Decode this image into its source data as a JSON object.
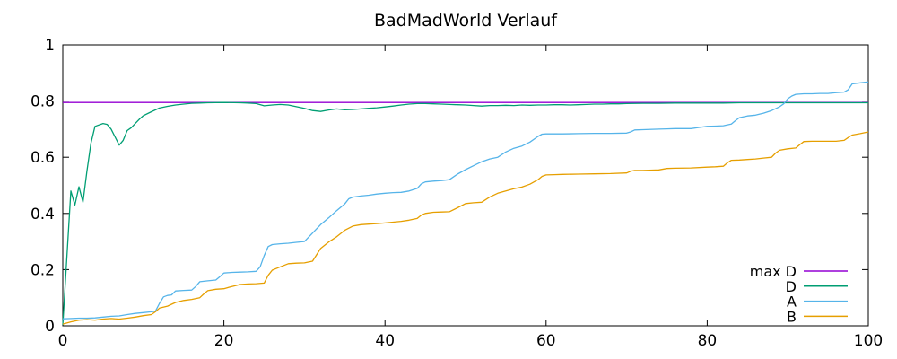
{
  "chart_data": {
    "type": "line",
    "title": "BadMadWorld Verlauf",
    "xlabel": "",
    "ylabel": "",
    "xlim": [
      0,
      100
    ],
    "ylim": [
      0,
      1
    ],
    "grid": false,
    "background_color": "#ffffff",
    "axis_color": "#000000",
    "legend_position": "inside-bottom-right",
    "x_ticks": [
      {
        "v": 0,
        "label": "0"
      },
      {
        "v": 20,
        "label": "20"
      },
      {
        "v": 40,
        "label": "40"
      },
      {
        "v": 60,
        "label": "60"
      },
      {
        "v": 80,
        "label": "80"
      },
      {
        "v": 100,
        "label": "100"
      }
    ],
    "y_ticks": [
      {
        "v": 0,
        "label": "0"
      },
      {
        "v": 0.2,
        "label": "0.2"
      },
      {
        "v": 0.4,
        "label": "0.4"
      },
      {
        "v": 0.6,
        "label": "0.6"
      },
      {
        "v": 0.8,
        "label": "0.8"
      },
      {
        "v": 1,
        "label": "1"
      }
    ],
    "series": [
      {
        "name": "max D",
        "color": "#9400d3",
        "points": [
          [
            0,
            0.795
          ],
          [
            100,
            0.795
          ]
        ]
      },
      {
        "name": "D",
        "color": "#009e73",
        "points": [
          [
            0,
            0.003
          ],
          [
            1,
            0.48
          ],
          [
            1.5,
            0.43
          ],
          [
            2,
            0.495
          ],
          [
            2.5,
            0.44
          ],
          [
            3,
            0.55
          ],
          [
            3.5,
            0.65
          ],
          [
            4,
            0.71
          ],
          [
            5,
            0.72
          ],
          [
            5.5,
            0.717
          ],
          [
            6,
            0.7
          ],
          [
            7,
            0.643
          ],
          [
            7.5,
            0.66
          ],
          [
            8,
            0.695
          ],
          [
            8.5,
            0.705
          ],
          [
            9,
            0.72
          ],
          [
            9.5,
            0.735
          ],
          [
            10,
            0.748
          ],
          [
            11,
            0.762
          ],
          [
            12,
            0.775
          ],
          [
            13,
            0.781
          ],
          [
            14,
            0.786
          ],
          [
            15,
            0.789
          ],
          [
            16,
            0.792
          ],
          [
            17,
            0.793
          ],
          [
            18,
            0.794
          ],
          [
            20,
            0.795
          ],
          [
            22,
            0.794
          ],
          [
            23,
            0.793
          ],
          [
            24,
            0.791
          ],
          [
            25,
            0.783
          ],
          [
            26,
            0.786
          ],
          [
            27,
            0.788
          ],
          [
            28,
            0.786
          ],
          [
            29,
            0.78
          ],
          [
            30,
            0.774
          ],
          [
            31,
            0.766
          ],
          [
            32,
            0.763
          ],
          [
            33,
            0.768
          ],
          [
            34,
            0.772
          ],
          [
            35,
            0.769
          ],
          [
            36,
            0.77
          ],
          [
            37,
            0.772
          ],
          [
            38,
            0.774
          ],
          [
            39,
            0.776
          ],
          [
            40,
            0.779
          ],
          [
            41,
            0.782
          ],
          [
            42,
            0.786
          ],
          [
            43,
            0.789
          ],
          [
            44,
            0.791
          ],
          [
            45,
            0.791
          ],
          [
            46,
            0.79
          ],
          [
            47,
            0.789
          ],
          [
            48,
            0.788
          ],
          [
            49,
            0.787
          ],
          [
            50,
            0.786
          ],
          [
            51,
            0.784
          ],
          [
            52,
            0.782
          ],
          [
            53,
            0.784
          ],
          [
            54,
            0.784
          ],
          [
            55,
            0.785
          ],
          [
            56,
            0.784
          ],
          [
            57,
            0.786
          ],
          [
            58,
            0.785
          ],
          [
            59,
            0.786
          ],
          [
            60,
            0.786
          ],
          [
            61,
            0.787
          ],
          [
            62,
            0.787
          ],
          [
            63,
            0.786
          ],
          [
            64,
            0.787
          ],
          [
            65,
            0.788
          ],
          [
            66,
            0.789
          ],
          [
            67,
            0.789
          ],
          [
            68,
            0.79
          ],
          [
            69,
            0.79
          ],
          [
            70,
            0.791
          ],
          [
            72,
            0.792
          ],
          [
            74,
            0.792
          ],
          [
            76,
            0.793
          ],
          [
            78,
            0.793
          ],
          [
            80,
            0.793
          ],
          [
            82,
            0.793
          ],
          [
            84,
            0.794
          ],
          [
            86,
            0.794
          ],
          [
            88,
            0.794
          ],
          [
            90,
            0.794
          ],
          [
            92,
            0.794
          ],
          [
            94,
            0.794
          ],
          [
            96,
            0.794
          ],
          [
            98,
            0.794
          ],
          [
            100,
            0.794
          ]
        ]
      },
      {
        "name": "A",
        "color": "#56b4e9",
        "points": [
          [
            0,
            0.025
          ],
          [
            1,
            0.026
          ],
          [
            2,
            0.027
          ],
          [
            3,
            0.027
          ],
          [
            4,
            0.028
          ],
          [
            5,
            0.031
          ],
          [
            6,
            0.034
          ],
          [
            7,
            0.035
          ],
          [
            8,
            0.04
          ],
          [
            9,
            0.044
          ],
          [
            10,
            0.047
          ],
          [
            11,
            0.05
          ],
          [
            11.5,
            0.052
          ],
          [
            12,
            0.08
          ],
          [
            12.5,
            0.103
          ],
          [
            13,
            0.108
          ],
          [
            13.5,
            0.11
          ],
          [
            14,
            0.124
          ],
          [
            15,
            0.126
          ],
          [
            16,
            0.127
          ],
          [
            16.5,
            0.14
          ],
          [
            17,
            0.157
          ],
          [
            18,
            0.16
          ],
          [
            19,
            0.163
          ],
          [
            19.5,
            0.175
          ],
          [
            20,
            0.188
          ],
          [
            21,
            0.19
          ],
          [
            22,
            0.191
          ],
          [
            23,
            0.192
          ],
          [
            24,
            0.194
          ],
          [
            24.5,
            0.21
          ],
          [
            25,
            0.25
          ],
          [
            25.5,
            0.282
          ],
          [
            26,
            0.289
          ],
          [
            27,
            0.292
          ],
          [
            28,
            0.294
          ],
          [
            29,
            0.297
          ],
          [
            30,
            0.3
          ],
          [
            31,
            0.33
          ],
          [
            32,
            0.36
          ],
          [
            33,
            0.384
          ],
          [
            34,
            0.41
          ],
          [
            35,
            0.434
          ],
          [
            35.5,
            0.452
          ],
          [
            36,
            0.458
          ],
          [
            37,
            0.462
          ],
          [
            38,
            0.465
          ],
          [
            39,
            0.469
          ],
          [
            40,
            0.472
          ],
          [
            41,
            0.474
          ],
          [
            42,
            0.475
          ],
          [
            43,
            0.48
          ],
          [
            44,
            0.489
          ],
          [
            44.5,
            0.505
          ],
          [
            45,
            0.512
          ],
          [
            46,
            0.515
          ],
          [
            47,
            0.517
          ],
          [
            48,
            0.52
          ],
          [
            49,
            0.54
          ],
          [
            50,
            0.556
          ],
          [
            51,
            0.57
          ],
          [
            52,
            0.584
          ],
          [
            53,
            0.594
          ],
          [
            54,
            0.6
          ],
          [
            55,
            0.619
          ],
          [
            56,
            0.632
          ],
          [
            57,
            0.64
          ],
          [
            58,
            0.654
          ],
          [
            59,
            0.674
          ],
          [
            59.5,
            0.682
          ],
          [
            60,
            0.683
          ],
          [
            62,
            0.683
          ],
          [
            64,
            0.684
          ],
          [
            66,
            0.685
          ],
          [
            68,
            0.685
          ],
          [
            70,
            0.686
          ],
          [
            70.5,
            0.69
          ],
          [
            71,
            0.697
          ],
          [
            72,
            0.698
          ],
          [
            74,
            0.7
          ],
          [
            75,
            0.701
          ],
          [
            76,
            0.702
          ],
          [
            78,
            0.702
          ],
          [
            79,
            0.706
          ],
          [
            80,
            0.71
          ],
          [
            81,
            0.711
          ],
          [
            82,
            0.712
          ],
          [
            83,
            0.718
          ],
          [
            83.5,
            0.73
          ],
          [
            84,
            0.741
          ],
          [
            85,
            0.747
          ],
          [
            86,
            0.75
          ],
          [
            87,
            0.757
          ],
          [
            88,
            0.766
          ],
          [
            89,
            0.78
          ],
          [
            89.5,
            0.79
          ],
          [
            90,
            0.808
          ],
          [
            90.5,
            0.818
          ],
          [
            91,
            0.824
          ],
          [
            92,
            0.826
          ],
          [
            93,
            0.826
          ],
          [
            94,
            0.827
          ],
          [
            95,
            0.827
          ],
          [
            96,
            0.83
          ],
          [
            97,
            0.832
          ],
          [
            97.5,
            0.84
          ],
          [
            98,
            0.861
          ],
          [
            99,
            0.865
          ],
          [
            100,
            0.868
          ]
        ]
      },
      {
        "name": "B",
        "color": "#e69f00",
        "points": [
          [
            0,
            0.006
          ],
          [
            1,
            0.014
          ],
          [
            2,
            0.02
          ],
          [
            3,
            0.022
          ],
          [
            4,
            0.02
          ],
          [
            5,
            0.024
          ],
          [
            6,
            0.026
          ],
          [
            7,
            0.024
          ],
          [
            8,
            0.027
          ],
          [
            9,
            0.031
          ],
          [
            10,
            0.036
          ],
          [
            11,
            0.04
          ],
          [
            11.5,
            0.05
          ],
          [
            12,
            0.063
          ],
          [
            13,
            0.07
          ],
          [
            14,
            0.083
          ],
          [
            15,
            0.09
          ],
          [
            16,
            0.094
          ],
          [
            17,
            0.1
          ],
          [
            17.5,
            0.113
          ],
          [
            18,
            0.125
          ],
          [
            19,
            0.13
          ],
          [
            20,
            0.132
          ],
          [
            21,
            0.14
          ],
          [
            22,
            0.147
          ],
          [
            23,
            0.149
          ],
          [
            24,
            0.15
          ],
          [
            25,
            0.152
          ],
          [
            25.5,
            0.18
          ],
          [
            26,
            0.198
          ],
          [
            27,
            0.21
          ],
          [
            28,
            0.221
          ],
          [
            29,
            0.223
          ],
          [
            30,
            0.224
          ],
          [
            31,
            0.23
          ],
          [
            32,
            0.275
          ],
          [
            33,
            0.298
          ],
          [
            34,
            0.317
          ],
          [
            35,
            0.34
          ],
          [
            36,
            0.355
          ],
          [
            37,
            0.36
          ],
          [
            38,
            0.362
          ],
          [
            39,
            0.364
          ],
          [
            40,
            0.366
          ],
          [
            41,
            0.369
          ],
          [
            42,
            0.372
          ],
          [
            43,
            0.376
          ],
          [
            44,
            0.382
          ],
          [
            44.5,
            0.394
          ],
          [
            45,
            0.4
          ],
          [
            46,
            0.404
          ],
          [
            47,
            0.405
          ],
          [
            48,
            0.406
          ],
          [
            49,
            0.42
          ],
          [
            50,
            0.435
          ],
          [
            51,
            0.438
          ],
          [
            52,
            0.44
          ],
          [
            53,
            0.458
          ],
          [
            54,
            0.472
          ],
          [
            55,
            0.48
          ],
          [
            56,
            0.488
          ],
          [
            57,
            0.494
          ],
          [
            58,
            0.504
          ],
          [
            59,
            0.52
          ],
          [
            59.5,
            0.532
          ],
          [
            60,
            0.537
          ],
          [
            61,
            0.538
          ],
          [
            62,
            0.539
          ],
          [
            64,
            0.54
          ],
          [
            66,
            0.541
          ],
          [
            68,
            0.542
          ],
          [
            70,
            0.544
          ],
          [
            70.5,
            0.55
          ],
          [
            71,
            0.553
          ],
          [
            72,
            0.553
          ],
          [
            74,
            0.555
          ],
          [
            75,
            0.56
          ],
          [
            76,
            0.561
          ],
          [
            78,
            0.562
          ],
          [
            80,
            0.565
          ],
          [
            81,
            0.566
          ],
          [
            82,
            0.568
          ],
          [
            82.5,
            0.58
          ],
          [
            83,
            0.589
          ],
          [
            84,
            0.59
          ],
          [
            85,
            0.592
          ],
          [
            86,
            0.594
          ],
          [
            87,
            0.597
          ],
          [
            88,
            0.6
          ],
          [
            88.5,
            0.615
          ],
          [
            89,
            0.625
          ],
          [
            90,
            0.63
          ],
          [
            91,
            0.633
          ],
          [
            91.5,
            0.645
          ],
          [
            92,
            0.656
          ],
          [
            93,
            0.657
          ],
          [
            94,
            0.657
          ],
          [
            95,
            0.657
          ],
          [
            96,
            0.657
          ],
          [
            97,
            0.66
          ],
          [
            97.5,
            0.67
          ],
          [
            98,
            0.679
          ],
          [
            99,
            0.684
          ],
          [
            100,
            0.69
          ]
        ]
      }
    ]
  }
}
